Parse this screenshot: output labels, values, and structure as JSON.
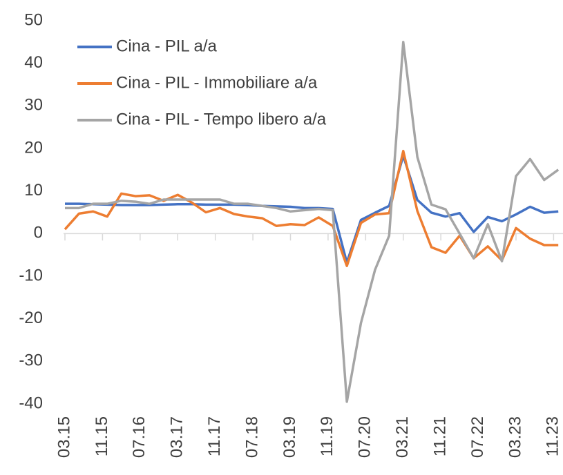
{
  "chart_data": {
    "type": "line",
    "x": [
      "2015-03",
      "2015-06",
      "2015-09",
      "2015-12",
      "2016-03",
      "2016-06",
      "2016-09",
      "2016-12",
      "2017-03",
      "2017-06",
      "2017-09",
      "2017-12",
      "2018-03",
      "2018-06",
      "2018-09",
      "2018-12",
      "2019-03",
      "2019-06",
      "2019-09",
      "2019-12",
      "2020-03",
      "2020-06",
      "2020-09",
      "2020-12",
      "2021-03",
      "2021-06",
      "2021-09",
      "2021-12",
      "2022-03",
      "2022-06",
      "2022-09",
      "2022-12",
      "2023-03",
      "2023-06",
      "2023-09",
      "2023-12"
    ],
    "series": [
      {
        "name": "Cina - PIL a/a",
        "color": "#4472c4",
        "values": [
          7.0,
          7.0,
          6.9,
          6.8,
          6.7,
          6.7,
          6.7,
          6.8,
          6.9,
          6.9,
          6.8,
          6.8,
          6.8,
          6.7,
          6.5,
          6.4,
          6.3,
          6.0,
          6.0,
          5.8,
          -6.8,
          3.2,
          4.9,
          6.5,
          18.3,
          7.9,
          4.9,
          4.0,
          4.8,
          0.4,
          3.9,
          2.9,
          4.5,
          6.3,
          4.9,
          5.2
        ]
      },
      {
        "name": "Cina - PIL - Immobiliare a/a",
        "color": "#ed7d31",
        "values": [
          1.0,
          4.7,
          5.2,
          4.0,
          9.4,
          8.8,
          9.0,
          7.7,
          9.1,
          7.3,
          5.0,
          6.0,
          4.6,
          4.0,
          3.6,
          1.8,
          2.2,
          2.0,
          3.8,
          1.8,
          -7.6,
          2.5,
          4.5,
          4.8,
          19.4,
          5.3,
          -3.2,
          -4.5,
          -0.5,
          -5.8,
          -3.0,
          -6.3,
          1.3,
          -1.2,
          -2.7,
          -2.7
        ]
      },
      {
        "name": "Cina - PIL - Tempo libero a/a",
        "color": "#a5a5a5",
        "values": [
          6.0,
          6.0,
          7.0,
          7.0,
          7.7,
          7.5,
          7.0,
          8.0,
          8.0,
          8.0,
          8.0,
          8.0,
          7.0,
          7.0,
          6.5,
          6.0,
          5.2,
          5.5,
          5.8,
          5.5,
          -39.5,
          -21.0,
          -8.5,
          -0.5,
          45.0,
          18.0,
          6.8,
          5.7,
          0.0,
          -5.8,
          2.2,
          -6.5,
          13.5,
          17.5,
          12.6,
          15.0
        ]
      }
    ],
    "xlim": [
      "2015-03",
      "2024-01"
    ],
    "xticks": [
      {
        "value": "2015-03",
        "label": "03.15"
      },
      {
        "value": "2015-11",
        "label": "11.15"
      },
      {
        "value": "2016-07",
        "label": "07.16"
      },
      {
        "value": "2017-03",
        "label": "03.17"
      },
      {
        "value": "2017-11",
        "label": "11.17"
      },
      {
        "value": "2018-07",
        "label": "07.18"
      },
      {
        "value": "2019-03",
        "label": "03.19"
      },
      {
        "value": "2019-11",
        "label": "11.19"
      },
      {
        "value": "2020-07",
        "label": "07.20"
      },
      {
        "value": "2021-03",
        "label": "03.21"
      },
      {
        "value": "2021-11",
        "label": "11.21"
      },
      {
        "value": "2022-07",
        "label": "07.22"
      },
      {
        "value": "2023-03",
        "label": "03.23"
      },
      {
        "value": "2023-11",
        "label": "11.23"
      }
    ],
    "ylim": [
      -40,
      50
    ],
    "yticks": [
      -40,
      -30,
      -20,
      -10,
      0,
      10,
      20,
      30,
      40,
      50
    ],
    "grid": false,
    "legend": "top-left"
  }
}
